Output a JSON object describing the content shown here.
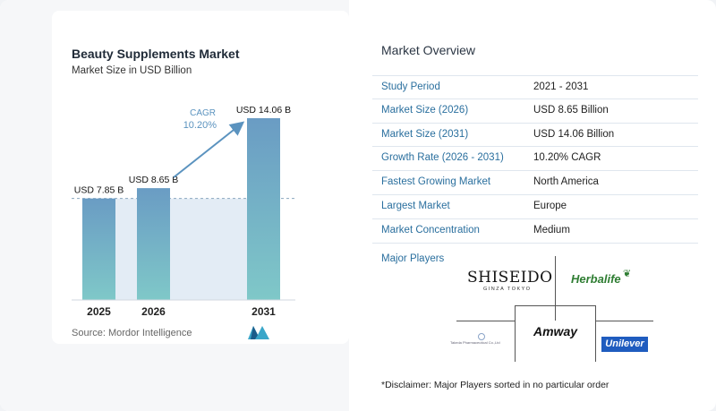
{
  "chart": {
    "title": "Beauty Supplements Market",
    "subtitle": "Market Size in USD Billion",
    "cagr_label": "CAGR",
    "cagr_value": "10.20%",
    "source": "Source: Mordor Intelligence"
  },
  "chart_data": {
    "type": "bar",
    "title": "Beauty Supplements Market",
    "subtitle": "Market Size in USD Billion",
    "categories": [
      "2025",
      "2026",
      "2031"
    ],
    "values": [
      7.85,
      8.65,
      14.06
    ],
    "data_labels": [
      "USD 7.85 B",
      "USD 8.65 B",
      "USD 14.06 B"
    ],
    "ylim": [
      0,
      14.06
    ],
    "xlabel": "",
    "ylabel": "",
    "grid": false,
    "annotation": {
      "label": "CAGR",
      "value": "10.20%"
    },
    "colors": {
      "bar_top": "#6a9cc4",
      "bar_bottom": "#7fc8c8",
      "shade": "#d9e6f1",
      "arrow": "#5b93bf"
    }
  },
  "overview": {
    "title": "Market Overview",
    "rows": [
      {
        "label": "Study Period",
        "value": "2021 - 2031"
      },
      {
        "label": "Market Size (2026)",
        "value": "USD 8.65 Billion"
      },
      {
        "label": "Market Size (2031)",
        "value": "USD 14.06 Billion"
      },
      {
        "label": "Growth Rate (2026 - 2031)",
        "value": "10.20% CAGR"
      },
      {
        "label": "Fastest Growing Market",
        "value": "North America"
      },
      {
        "label": "Largest Market",
        "value": "Europe"
      },
      {
        "label": "Market Concentration",
        "value": "Medium"
      }
    ]
  },
  "players": {
    "title": "Major Players",
    "shiseido": "SHISEIDO",
    "shiseido_sub": "GINZA TOKYO",
    "herbalife": "Herbalife",
    "amway": "Amway",
    "takeda": "Takeda Pharmaceutical Co.,Ltd",
    "unilever": "Unilever"
  },
  "disclaimer": "*Disclaimer: Major Players sorted in no particular order"
}
